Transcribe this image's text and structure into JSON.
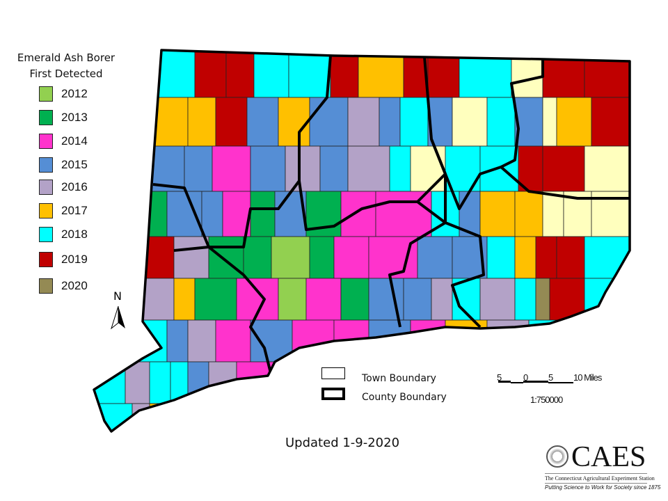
{
  "legend": {
    "title_line1": "Emerald Ash Borer",
    "title_line2": "First Detected",
    "items": [
      {
        "label": "2012",
        "color": "#92d050"
      },
      {
        "label": "2013",
        "color": "#00b050"
      },
      {
        "label": "2014",
        "color": "#ff33cc"
      },
      {
        "label": "2015",
        "color": "#558ed5"
      },
      {
        "label": "2016",
        "color": "#b3a2c7"
      },
      {
        "label": "2017",
        "color": "#ffc000"
      },
      {
        "label": "2018",
        "color": "#00ffff"
      },
      {
        "label": "2019",
        "color": "#c00000"
      },
      {
        "label": "2020",
        "color": "#948a54"
      }
    ],
    "no_detection_color": "#ffffbe"
  },
  "north_arrow": {
    "label": "N"
  },
  "boundary_key": {
    "town": "Town Boundary",
    "county": "County Boundary"
  },
  "scale_bar": {
    "ticks": [
      "5",
      "0",
      "5",
      "10 Miles"
    ],
    "ratio": "1:750000"
  },
  "updated": "Updated 1-9-2020",
  "logo": {
    "name": "CAES",
    "subtitle": "The Connecticut Agricultural Experiment Station",
    "tagline": "Putting Science to Work for Society since 1875"
  }
}
